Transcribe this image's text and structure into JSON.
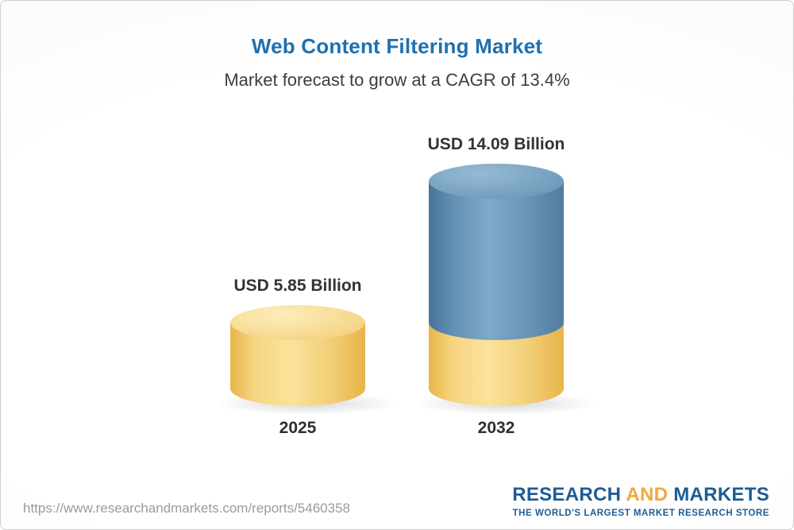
{
  "chart_data": {
    "type": "bar",
    "title": "Web Content Filtering Market",
    "subtitle": "Market forecast to grow at a CAGR of 13.4%",
    "cagr_percent": 13.4,
    "categories": [
      "2025",
      "2032"
    ],
    "values": [
      5.85,
      14.09
    ],
    "value_labels": [
      "USD 5.85 Billion",
      "USD 14.09 Billion"
    ],
    "unit": "USD Billion",
    "ylim": [
      0,
      14.09
    ],
    "grid": false,
    "legend": "none",
    "bars": [
      {
        "year": "2025",
        "value": 5.85,
        "label": "USD 5.85 Billion",
        "color": "#f3cd74"
      },
      {
        "year": "2032",
        "value": 14.09,
        "label": "USD 14.09 Billion",
        "color_top": "#6b96b6",
        "color_base": "#f3cd74"
      }
    ]
  },
  "footer": {
    "report_url": "https://www.researchandmarkets.com/reports/5460358",
    "logo": {
      "word1": "RESEARCH",
      "word2": "AND",
      "word3": "MARKETS",
      "tagline": "THE WORLD'S LARGEST MARKET RESEARCH STORE"
    }
  },
  "colors": {
    "title_blue": "#1e70b0",
    "text_dark": "#333333",
    "url_gray": "#9b9b9b",
    "logo_blue": "#1d5c94",
    "logo_gold": "#f0a93e",
    "bar_yellow": "#f3cd74",
    "bar_blue": "#6b96b6"
  }
}
